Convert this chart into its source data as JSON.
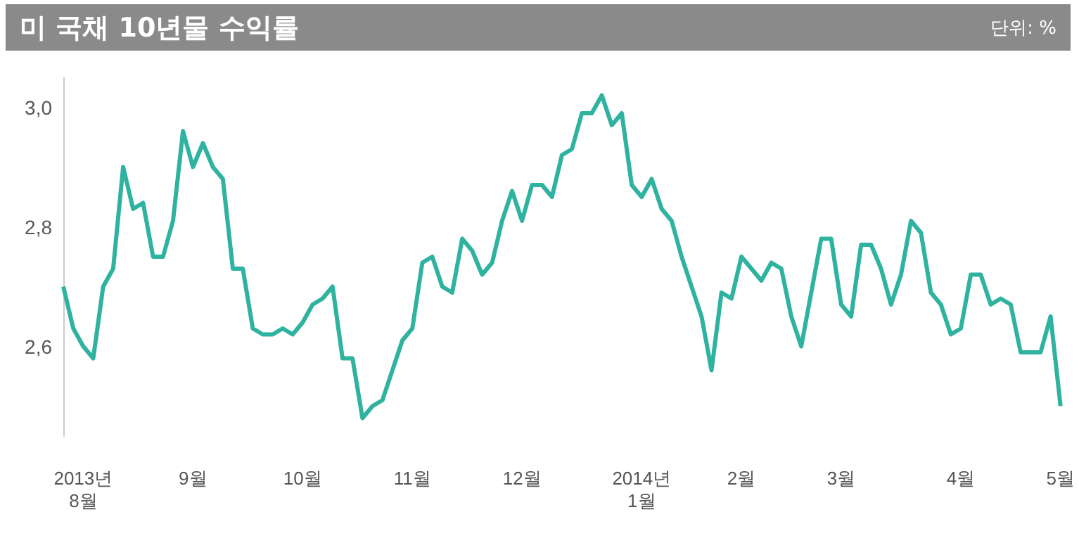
{
  "chart_data": {
    "type": "line",
    "title": "미 국채 10년물 수익률",
    "subtitle": "단위: %",
    "categories": [
      null,
      null,
      "2013년\n8월",
      null,
      null,
      null,
      null,
      null,
      null,
      null,
      null,
      null,
      null,
      "9월",
      null,
      null,
      null,
      null,
      null,
      null,
      null,
      null,
      null,
      null,
      "10월",
      null,
      null,
      null,
      null,
      null,
      null,
      null,
      null,
      null,
      null,
      "11월",
      null,
      null,
      null,
      null,
      null,
      null,
      null,
      null,
      null,
      null,
      "12월",
      null,
      null,
      null,
      null,
      null,
      null,
      null,
      null,
      null,
      null,
      null,
      "2014년\n1월",
      null,
      null,
      null,
      null,
      null,
      null,
      null,
      null,
      null,
      "2월",
      null,
      null,
      null,
      null,
      null,
      null,
      null,
      null,
      null,
      "3월",
      null,
      null,
      null,
      null,
      null,
      null,
      null,
      null,
      null,
      null,
      null,
      "4월",
      null,
      null,
      null,
      null,
      null,
      null,
      null,
      null,
      null,
      "5월"
    ],
    "series": [
      {
        "color": "#2fb3a0",
        "values": [
          2.7,
          2.63,
          2.6,
          2.58,
          2.7,
          2.73,
          2.9,
          2.83,
          2.84,
          2.75,
          2.75,
          2.81,
          2.96,
          2.9,
          2.94,
          2.9,
          2.88,
          2.73,
          2.73,
          2.63,
          2.62,
          2.62,
          2.63,
          2.62,
          2.64,
          2.67,
          2.68,
          2.7,
          2.58,
          2.58,
          2.48,
          2.5,
          2.51,
          2.56,
          2.61,
          2.63,
          2.74,
          2.75,
          2.7,
          2.69,
          2.78,
          2.76,
          2.72,
          2.74,
          2.81,
          2.86,
          2.81,
          2.87,
          2.87,
          2.85,
          2.92,
          2.93,
          2.99,
          2.99,
          3.02,
          2.97,
          2.99,
          2.87,
          2.85,
          2.88,
          2.83,
          2.81,
          2.75,
          2.7,
          2.65,
          2.56,
          2.69,
          2.68,
          2.75,
          2.73,
          2.71,
          2.74,
          2.73,
          2.65,
          2.6,
          2.69,
          2.78,
          2.78,
          2.67,
          2.65,
          2.77,
          2.77,
          2.73,
          2.67,
          2.72,
          2.81,
          2.79,
          2.69,
          2.67,
          2.62,
          2.63,
          2.72,
          2.72,
          2.67,
          2.68,
          2.67,
          2.59,
          2.59,
          2.59,
          2.65,
          2.5
        ]
      }
    ],
    "ylim": [
      2.45,
      3.05
    ],
    "yticks": [
      {
        "value": 2.6,
        "label": "2,6"
      },
      {
        "value": 2.8,
        "label": "2,8"
      },
      {
        "value": 3.0,
        "label": "3,0"
      }
    ],
    "grid": false,
    "marker": "none",
    "line_style": "solid"
  }
}
